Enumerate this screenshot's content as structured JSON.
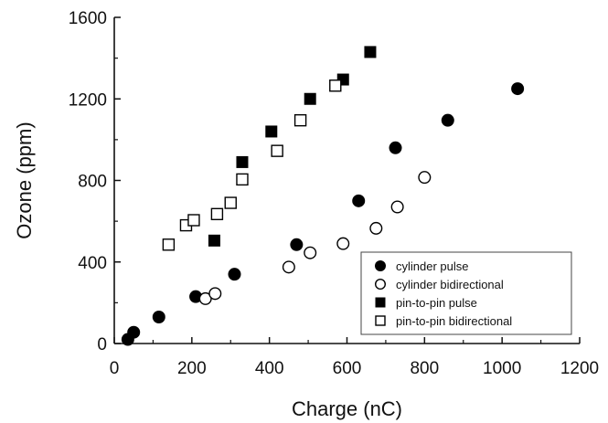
{
  "chart_data": {
    "type": "scatter",
    "title": "",
    "xlabel": "Charge (nC)",
    "ylabel": "Ozone (ppm)",
    "xlim": [
      0,
      1200
    ],
    "ylim": [
      0,
      1600
    ],
    "xticks": [
      0,
      200,
      400,
      600,
      800,
      1000,
      1200
    ],
    "yticks": [
      0,
      400,
      800,
      1200,
      1600
    ],
    "xtick_labels": [
      "0",
      "200",
      "400",
      "600",
      "800",
      "1000",
      "1200"
    ],
    "ytick_labels": [
      "0",
      "400",
      "800",
      "1200",
      "1600"
    ],
    "grid": false,
    "legend_position": "bottom-right",
    "series": [
      {
        "name": "cylinder pulse",
        "marker": "filled-circle",
        "x": [
          35,
          50,
          115,
          210,
          310,
          470,
          630,
          725,
          860,
          1040
        ],
        "y": [
          20,
          55,
          130,
          230,
          340,
          485,
          700,
          960,
          1095,
          1250
        ]
      },
      {
        "name": "cylinder bidirectional",
        "marker": "open-circle",
        "x": [
          235,
          260,
          450,
          505,
          590,
          675,
          730,
          800
        ],
        "y": [
          220,
          245,
          375,
          445,
          490,
          565,
          670,
          815
        ]
      },
      {
        "name": "pin-to-pin pulse",
        "marker": "filled-square",
        "x": [
          258,
          330,
          405,
          505,
          590,
          660
        ],
        "y": [
          505,
          890,
          1040,
          1200,
          1295,
          1430
        ]
      },
      {
        "name": "pin-to-pin bidirectional",
        "marker": "open-square",
        "x": [
          140,
          185,
          205,
          265,
          300,
          330,
          420,
          480,
          570
        ],
        "y": [
          485,
          580,
          605,
          635,
          690,
          805,
          945,
          1095,
          1265
        ]
      }
    ]
  },
  "colors": {
    "marker": "#000000",
    "axis": "#111111",
    "background": "#ffffff"
  }
}
